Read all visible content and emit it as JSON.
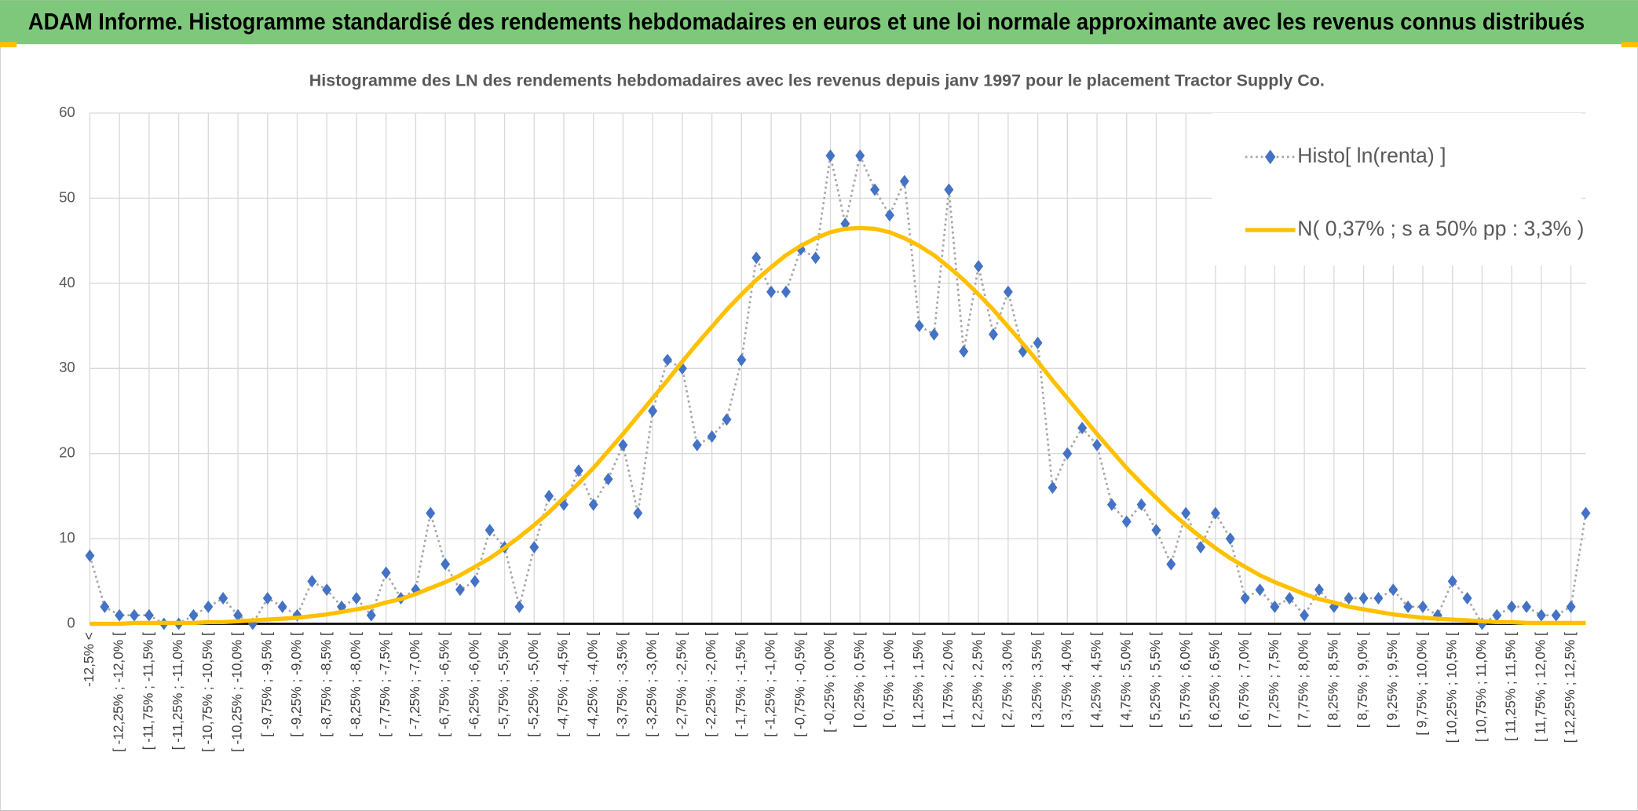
{
  "chart_data": {
    "type": "line",
    "header": "ADAM Informe. Histogramme standardisé des rendements hebdomadaires en euros et une loi normale approximante avec les revenus connus distribués",
    "title": "Histogramme des LN des rendements hebdomadaires avec les revenus depuis janv 1997 pour le placement Tractor Supply Co.",
    "categories": [
      "-12,5% <",
      null,
      "[ -12,25% ; -12,0% [",
      null,
      "[ -11,75% ; -11,5% [",
      null,
      "[ -11,25% ; -11,0% [",
      null,
      "[ -10,75% ; -10,5% [",
      null,
      "[ -10,25% ; -10,0% [",
      null,
      "[ -9,75% ; -9,5% [",
      null,
      "[ -9,25% ; -9,0% [",
      null,
      "[ -8,75% ; -8,5% [",
      null,
      "[ -8,25% ; -8,0% [",
      null,
      "[ -7,75% ; -7,5% [",
      null,
      "[ -7,25% ; -7,0% [",
      null,
      "[ -6,75% ; -6,5% [",
      null,
      "[ -6,25% ; -6,0% [",
      null,
      "[ -5,75% ; -5,5% [",
      null,
      "[ -5,25% ; -5,0% [",
      null,
      "[ -4,75% ; -4,5% [",
      null,
      "[ -4,25% ; -4,0% [",
      null,
      "[ -3,75% ; -3,5% [",
      null,
      "[ -3,25% ; -3,0% [",
      null,
      "[ -2,75% ; -2,5% [",
      null,
      "[ -2,25% ; -2,0% [",
      null,
      "[ -1,75% ; -1,5% [",
      null,
      "[ -1,25% ; -1,0% [",
      null,
      "[ -0,75% ; -0,5% [",
      null,
      "[ -0,25% ; 0,0% [",
      null,
      "[ 0,25% ; 0,5% [",
      null,
      "[ 0,75% ; 1,0% [",
      null,
      "[ 1,25% ; 1,5% [",
      null,
      "[ 1,75% ; 2,0% [",
      null,
      "[ 2,25% ; 2,5% [",
      null,
      "[ 2,75% ; 3,0% [",
      null,
      "[ 3,25% ; 3,5% [",
      null,
      "[ 3,75% ; 4,0% [",
      null,
      "[ 4,25% ; 4,5% [",
      null,
      "[ 4,75% ; 5,0% [",
      null,
      "[ 5,25% ; 5,5% [",
      null,
      "[ 5,75% ; 6,0% [",
      null,
      "[ 6,25% ; 6,5% [",
      null,
      "[ 6,75% ; 7,0% [",
      null,
      "[ 7,25% ; 7,5% [",
      null,
      "[ 7,75% ; 8,0% [",
      null,
      "[ 8,25% ; 8,5% [",
      null,
      "[ 8,75% ; 9,0% [",
      null,
      "[ 9,25% ; 9,5% [",
      null,
      "[ 9,75% ; 10,0% [",
      null,
      "[ 10,25% ; 10,5% [",
      null,
      "[ 10,75% ; 11,0% [",
      null,
      "[ 11,25% ; 11,5% [",
      null,
      "[ 11,75% ; 12,0% [",
      null,
      "[ 12,25% ; 12,5% [",
      null
    ],
    "series": [
      {
        "name": "Histo[ ln(renta) ]",
        "color": "#4472c4",
        "line_color": "#a6a6a6",
        "values": [
          8,
          2,
          1,
          1,
          1,
          0,
          0,
          1,
          2,
          3,
          1,
          0,
          3,
          2,
          1,
          5,
          4,
          2,
          3,
          1,
          6,
          3,
          4,
          13,
          7,
          4,
          5,
          11,
          9,
          2,
          9,
          15,
          14,
          18,
          14,
          17,
          21,
          13,
          25,
          31,
          30,
          21,
          22,
          24,
          31,
          43,
          39,
          39,
          44,
          43,
          55,
          47,
          55,
          51,
          48,
          52,
          35,
          34,
          51,
          32,
          42,
          34,
          39,
          32,
          33,
          16,
          20,
          23,
          21,
          14,
          12,
          14,
          11,
          7,
          13,
          9,
          13,
          10,
          3,
          4,
          2,
          3,
          1,
          4,
          2,
          3,
          3,
          3,
          4,
          2,
          2,
          1,
          5,
          3,
          0,
          1,
          2,
          2,
          1,
          1,
          2,
          13
        ]
      },
      {
        "name": "N( 0,37% ; s a 50% pp : 3,3% )",
        "color": "#ffc000",
        "values": [
          0,
          0,
          0,
          0.1,
          0.1,
          0.1,
          0.1,
          0.1,
          0.2,
          0.2,
          0.3,
          0.4,
          0.5,
          0.6,
          0.7,
          0.9,
          1.1,
          1.4,
          1.7,
          2.0,
          2.5,
          2.9,
          3.5,
          4.2,
          4.9,
          5.7,
          6.7,
          7.7,
          8.9,
          10.2,
          11.6,
          13.1,
          14.8,
          16.5,
          18.3,
          20.3,
          22.3,
          24.4,
          26.5,
          28.6,
          30.8,
          32.9,
          34.9,
          36.9,
          38.7,
          40.4,
          41.9,
          43.3,
          44.4,
          45.3,
          46.0,
          46.4,
          46.5,
          46.4,
          46.0,
          45.3,
          44.4,
          43.3,
          41.9,
          40.4,
          38.7,
          36.9,
          34.9,
          32.9,
          30.8,
          28.6,
          26.5,
          24.4,
          22.3,
          20.3,
          18.3,
          16.5,
          14.8,
          13.1,
          11.6,
          10.2,
          8.9,
          7.7,
          6.7,
          5.7,
          4.9,
          4.2,
          3.5,
          2.9,
          2.5,
          2.0,
          1.7,
          1.4,
          1.1,
          0.9,
          0.7,
          0.6,
          0.5,
          0.4,
          0.3,
          0.2,
          0.2,
          0.1,
          0.1,
          0.1,
          0.1,
          0.1
        ]
      }
    ],
    "ylim": [
      0,
      60
    ],
    "yticks": [
      0,
      10,
      20,
      30,
      40,
      50,
      60
    ],
    "grid": true,
    "legend": "top-right"
  }
}
